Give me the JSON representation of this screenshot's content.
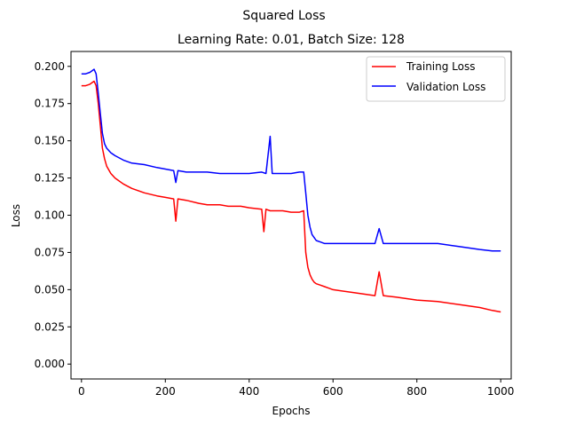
{
  "figure": {
    "suptitle": "Squared Loss"
  },
  "chart_data": {
    "type": "line",
    "title": "Learning Rate: 0.01, Batch Size: 128",
    "xlabel": "Epochs",
    "ylabel": "Loss",
    "xlim": [
      -25,
      1025
    ],
    "ylim": [
      -0.01,
      0.21
    ],
    "xticks": [
      0,
      200,
      400,
      600,
      800,
      1000
    ],
    "xtick_labels": [
      "0",
      "200",
      "400",
      "600",
      "800",
      "1000"
    ],
    "yticks": [
      0.0,
      0.025,
      0.05,
      0.075,
      0.1,
      0.125,
      0.15,
      0.175,
      0.2
    ],
    "ytick_labels": [
      "0.000",
      "0.025",
      "0.050",
      "0.075",
      "0.100",
      "0.125",
      "0.150",
      "0.175",
      "0.200"
    ],
    "grid": false,
    "legend_position": "upper right",
    "series": [
      {
        "name": "Training Loss",
        "color": "#ff0000",
        "x": [
          0,
          10,
          20,
          30,
          35,
          40,
          45,
          50,
          55,
          60,
          70,
          80,
          100,
          120,
          150,
          180,
          200,
          220,
          225,
          230,
          250,
          280,
          300,
          330,
          350,
          380,
          400,
          430,
          435,
          440,
          450,
          480,
          500,
          520,
          530,
          535,
          540,
          545,
          550,
          555,
          560,
          570,
          580,
          590,
          600,
          650,
          700,
          710,
          720,
          750,
          800,
          850,
          900,
          950,
          980,
          1000
        ],
        "y": [
          0.187,
          0.187,
          0.188,
          0.19,
          0.187,
          0.175,
          0.16,
          0.145,
          0.138,
          0.133,
          0.128,
          0.125,
          0.121,
          0.118,
          0.115,
          0.113,
          0.112,
          0.111,
          0.096,
          0.111,
          0.11,
          0.108,
          0.107,
          0.107,
          0.106,
          0.106,
          0.105,
          0.104,
          0.089,
          0.104,
          0.103,
          0.103,
          0.102,
          0.102,
          0.103,
          0.075,
          0.065,
          0.06,
          0.057,
          0.055,
          0.054,
          0.053,
          0.052,
          0.051,
          0.05,
          0.048,
          0.046,
          0.062,
          0.046,
          0.045,
          0.043,
          0.042,
          0.04,
          0.038,
          0.036,
          0.035
        ]
      },
      {
        "name": "Validation Loss",
        "color": "#0000ff",
        "x": [
          0,
          10,
          20,
          30,
          35,
          40,
          45,
          50,
          55,
          60,
          70,
          80,
          100,
          120,
          150,
          180,
          200,
          220,
          225,
          230,
          250,
          280,
          300,
          330,
          350,
          380,
          400,
          430,
          440,
          450,
          455,
          480,
          500,
          520,
          530,
          535,
          540,
          545,
          550,
          555,
          560,
          570,
          580,
          590,
          600,
          650,
          700,
          710,
          720,
          750,
          800,
          850,
          900,
          950,
          980,
          1000
        ],
        "y": [
          0.195,
          0.195,
          0.196,
          0.198,
          0.195,
          0.182,
          0.168,
          0.155,
          0.148,
          0.145,
          0.142,
          0.14,
          0.137,
          0.135,
          0.134,
          0.132,
          0.131,
          0.13,
          0.122,
          0.13,
          0.129,
          0.129,
          0.129,
          0.128,
          0.128,
          0.128,
          0.128,
          0.129,
          0.128,
          0.153,
          0.128,
          0.128,
          0.128,
          0.129,
          0.129,
          0.115,
          0.1,
          0.092,
          0.087,
          0.085,
          0.083,
          0.082,
          0.081,
          0.081,
          0.081,
          0.081,
          0.081,
          0.091,
          0.081,
          0.081,
          0.081,
          0.081,
          0.079,
          0.077,
          0.076,
          0.076
        ]
      }
    ]
  }
}
